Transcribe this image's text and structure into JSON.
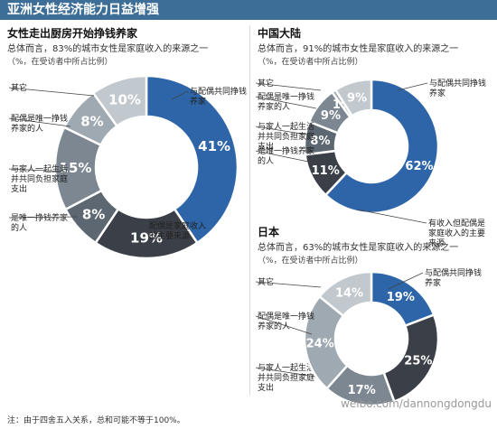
{
  "header": {
    "title": "亚洲女性经济能力日益增强"
  },
  "footnote": "注：由于四舍五入关系，总和可能不等于100%。",
  "watermark": "weibo.com/dannongdongdu",
  "colors": {
    "blue": "#2d65a8",
    "dark": "#3b3f47",
    "slate": "#5c6772",
    "mid": "#7c8791",
    "light": "#9fa9b1",
    "lightest": "#c1c8ce"
  },
  "chart_data": [
    {
      "type": "pie",
      "title": "女性走出厨房开始挣钱养家",
      "subtitle": "总体而言，83%的城市女性是家庭收入的来源之一",
      "note": "（%，在受访者中所占比例）",
      "legend": "labels outside with leader lines",
      "slices": [
        {
          "label": "与配偶共同挣钱养家",
          "value": 41,
          "color": "blue"
        },
        {
          "label": "配偶是家庭收入的主要来源",
          "value": 19,
          "color": "dark"
        },
        {
          "label": "是唯一挣钱养家的人",
          "value": 8,
          "color": "slate"
        },
        {
          "label": "与家人一起生活并共同负担家庭支出",
          "value": 15,
          "color": "mid"
        },
        {
          "label": "配偶是唯一挣钱养家的人",
          "value": 8,
          "color": "light"
        },
        {
          "label": "其它",
          "value": 10,
          "color": "lightest"
        }
      ]
    },
    {
      "type": "pie",
      "title": "中国大陆",
      "subtitle": "总体而言，91%的城市女性是家庭收入的来源之一",
      "note": "（%，在受访者中所占比例）",
      "legend": "labels outside with leader lines",
      "slices": [
        {
          "label": "与配偶共同挣钱养家",
          "value": 62,
          "color": "blue"
        },
        {
          "label": "有收入但配偶是家庭收入的主要来源",
          "value": 11,
          "color": "dark"
        },
        {
          "label": "是唯一挣钱养家的人",
          "value": 8,
          "color": "slate"
        },
        {
          "label": "与家人一起生活并共同负担家庭支出",
          "value": 9,
          "color": "mid"
        },
        {
          "label": "配偶是唯一挣钱养家的人",
          "value": 1,
          "color": "light"
        },
        {
          "label": "其它",
          "value": 9,
          "color": "lightest"
        }
      ]
    },
    {
      "type": "pie",
      "title": "日本",
      "subtitle": "总体而言，63%的城市女性是家庭收入的来源之一",
      "note": "（%，在受访者中所占比例）",
      "legend": "labels outside with leader lines",
      "slices": [
        {
          "label": "与配偶共同挣钱养家",
          "value": 19,
          "color": "blue"
        },
        {
          "label": "",
          "value": 25,
          "color": "dark"
        },
        {
          "label": "与家人一起生活并共同负担家庭支出",
          "value": 17,
          "color": "mid"
        },
        {
          "label": "配偶是唯一挣钱养家的人",
          "value": 24,
          "color": "light"
        },
        {
          "label": "其它",
          "value": 14,
          "color": "lightest"
        }
      ]
    }
  ]
}
